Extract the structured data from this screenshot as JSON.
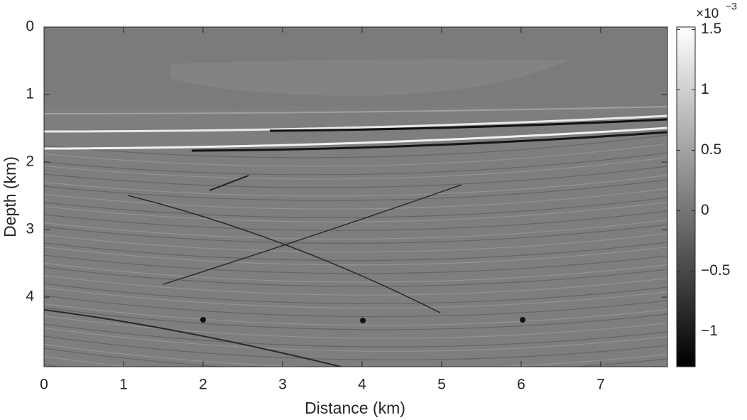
{
  "chart_data": {
    "type": "image",
    "xlabel": "Distance (km)",
    "ylabel": "Depth (km)",
    "xlim": [
      0,
      7.84
    ],
    "ylim": [
      0,
      5.03
    ],
    "y_reversed": true,
    "xticks": [
      0,
      1,
      2,
      3,
      4,
      5,
      6,
      7
    ],
    "yticks": [
      0,
      1,
      2,
      3,
      4
    ],
    "colormap": "gray",
    "clim": [
      -1.29,
      1.52
    ],
    "cticks": [
      {
        "value": -1,
        "label": "−1"
      },
      {
        "value": -0.5,
        "label": "−0.5"
      },
      0,
      0.5,
      1,
      1.5
    ],
    "colorbar_exponent": {
      "base": "×10",
      "power": "−3"
    }
  }
}
